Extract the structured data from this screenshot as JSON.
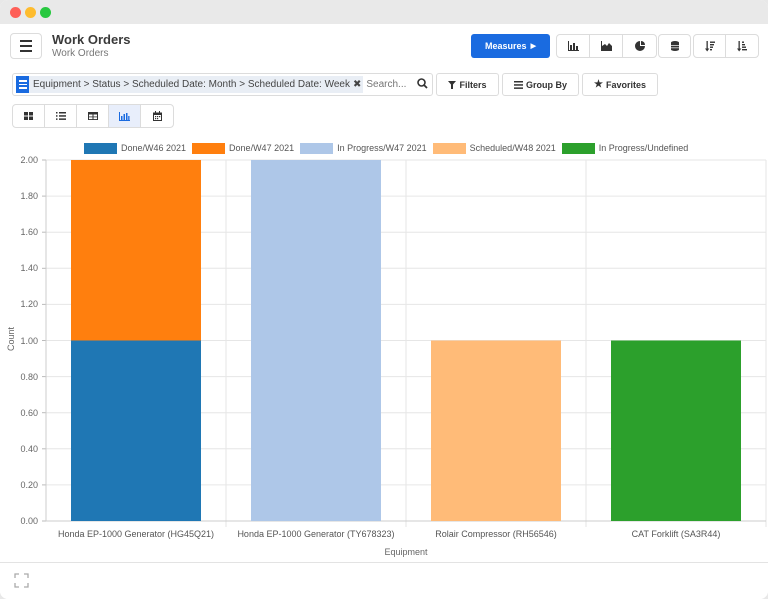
{
  "window": {
    "title": "Work Orders"
  },
  "header": {
    "title": "Work Orders",
    "breadcrumb": "Work Orders"
  },
  "toolbar": {
    "measures_label": "Measures",
    "chart_type_buttons": [
      {
        "icon": "bar-chart-icon",
        "active": false
      },
      {
        "icon": "area-chart-icon",
        "active": false
      },
      {
        "icon": "pie-chart-icon",
        "active": false
      }
    ],
    "stack_button": {
      "icon": "database-stack-icon"
    },
    "sort_buttons": [
      {
        "icon": "sort-descending-icon"
      },
      {
        "icon": "sort-ascending-icon"
      }
    ]
  },
  "search": {
    "facet": "Equipment > Status > Scheduled Date: Month > Scheduled Date: Week",
    "placeholder": "Search..."
  },
  "filters": {
    "filters_label": "Filters",
    "groupby_label": "Group By",
    "favorites_label": "Favorites"
  },
  "views": [
    {
      "name": "kanban",
      "icon": "kanban-icon",
      "active": false
    },
    {
      "name": "list",
      "icon": "list-icon",
      "active": false
    },
    {
      "name": "pivot",
      "icon": "pivot-table-icon",
      "active": false
    },
    {
      "name": "graph",
      "icon": "graph-icon",
      "active": true
    },
    {
      "name": "calendar",
      "icon": "calendar-icon",
      "active": false
    }
  ],
  "colors": {
    "accent": "#1a6be0"
  },
  "chart_data": {
    "type": "bar",
    "stacked": true,
    "xlabel": "Equipment",
    "ylabel": "Count",
    "ylim": [
      0,
      2
    ],
    "yticks": [
      "0.00",
      "0.20",
      "0.40",
      "0.60",
      "0.80",
      "1.00",
      "1.20",
      "1.40",
      "1.60",
      "1.80",
      "2.00"
    ],
    "grid": true,
    "legend_position": "top",
    "categories": [
      "Honda EP-1000 Generator (HG45Q21)",
      "Honda EP-1000 Generator (TY678323)",
      "Rolair Compressor (RH56546)",
      "CAT Forklift (SA3R44)"
    ],
    "series": [
      {
        "name": "Done/W46 2021",
        "color": "#1f77b4",
        "values": [
          1,
          0,
          0,
          0
        ]
      },
      {
        "name": "Done/W47 2021",
        "color": "#ff7f0e",
        "values": [
          1,
          0,
          0,
          0
        ]
      },
      {
        "name": "In Progress/W47 2021",
        "color": "#aec7e8",
        "values": [
          0,
          2,
          0,
          0
        ]
      },
      {
        "name": "Scheduled/W48 2021",
        "color": "#ffbb78",
        "values": [
          0,
          0,
          1,
          0
        ]
      },
      {
        "name": "In Progress/Undefined",
        "color": "#2ca02c",
        "values": [
          0,
          0,
          0,
          1
        ]
      }
    ]
  }
}
